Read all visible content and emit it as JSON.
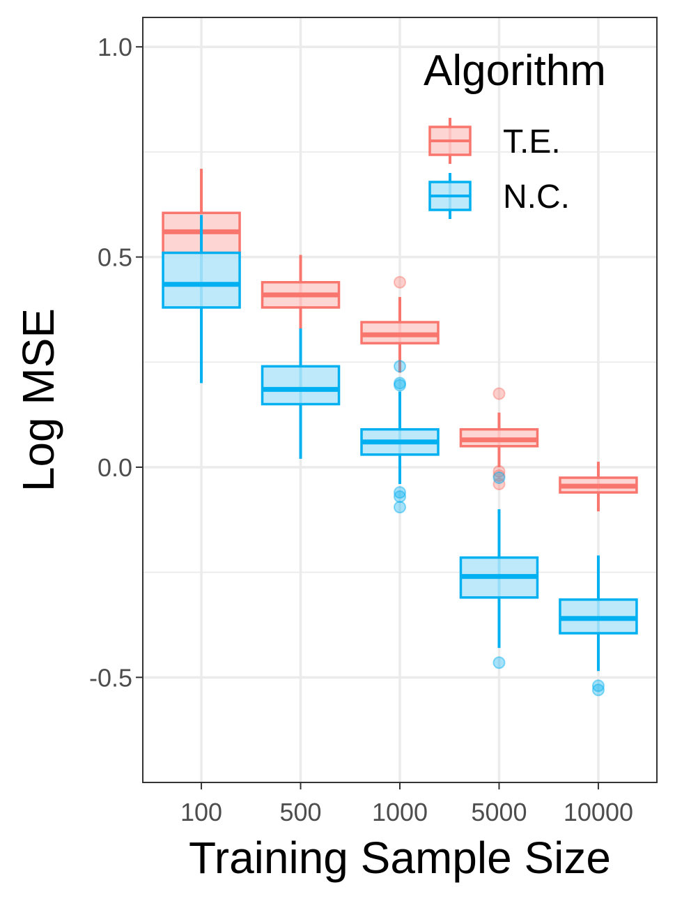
{
  "chart_data": {
    "type": "boxplot",
    "xlabel": "Training Sample Size",
    "ylabel": "Log MSE",
    "categories": [
      "100",
      "500",
      "1000",
      "5000",
      "10000"
    ],
    "ylim": [
      -0.75,
      1.07
    ],
    "yticks": [
      -0.5,
      0.0,
      0.5,
      1.0
    ],
    "ytick_labels": [
      "-0.5",
      "0.0",
      "0.5",
      "1.0"
    ],
    "grid": true,
    "legend": {
      "title": "Algorithm",
      "position": "top-right",
      "entries": [
        "T.E.",
        "N.C."
      ]
    },
    "series": [
      {
        "name": "T.E.",
        "color": "#F8766D",
        "fill": "#FDCFCC",
        "boxes": [
          {
            "category": "100",
            "whisker_low": 0.42,
            "q1": 0.51,
            "median": 0.56,
            "q3": 0.605,
            "whisker_high": 0.71,
            "outliers": []
          },
          {
            "category": "500",
            "whisker_low": 0.33,
            "q1": 0.38,
            "median": 0.41,
            "q3": 0.44,
            "whisker_high": 0.505,
            "outliers": []
          },
          {
            "category": "1000",
            "whisker_low": 0.225,
            "q1": 0.295,
            "median": 0.315,
            "q3": 0.345,
            "whisker_high": 0.405,
            "outliers": [
              0.44
            ]
          },
          {
            "category": "5000",
            "whisker_low": 0.0,
            "q1": 0.05,
            "median": 0.065,
            "q3": 0.09,
            "whisker_high": 0.13,
            "outliers": [
              0.175,
              -0.01,
              -0.02,
              -0.04
            ]
          },
          {
            "category": "10000",
            "whisker_low": -0.105,
            "q1": -0.06,
            "median": -0.045,
            "q3": -0.025,
            "whisker_high": 0.013,
            "outliers": []
          }
        ]
      },
      {
        "name": "N.C.",
        "color": "#00B0F0",
        "fill": "#B3E5F9",
        "boxes": [
          {
            "category": "100",
            "whisker_low": 0.2,
            "q1": 0.38,
            "median": 0.435,
            "q3": 0.51,
            "whisker_high": 0.6,
            "outliers": []
          },
          {
            "category": "500",
            "whisker_low": 0.02,
            "q1": 0.15,
            "median": 0.185,
            "q3": 0.24,
            "whisker_high": 0.33,
            "outliers": []
          },
          {
            "category": "1000",
            "whisker_low": -0.04,
            "q1": 0.03,
            "median": 0.06,
            "q3": 0.09,
            "whisker_high": 0.18,
            "outliers": [
              0.24,
              0.2,
              0.195,
              -0.06,
              -0.07,
              -0.095
            ]
          },
          {
            "category": "5000",
            "whisker_low": -0.43,
            "q1": -0.31,
            "median": -0.26,
            "q3": -0.215,
            "whisker_high": -0.1,
            "outliers": [
              -0.025,
              -0.465
            ]
          },
          {
            "category": "10000",
            "whisker_low": -0.485,
            "q1": -0.395,
            "median": -0.36,
            "q3": -0.315,
            "whisker_high": -0.21,
            "outliers": [
              -0.52,
              -0.53
            ]
          }
        ]
      }
    ]
  }
}
